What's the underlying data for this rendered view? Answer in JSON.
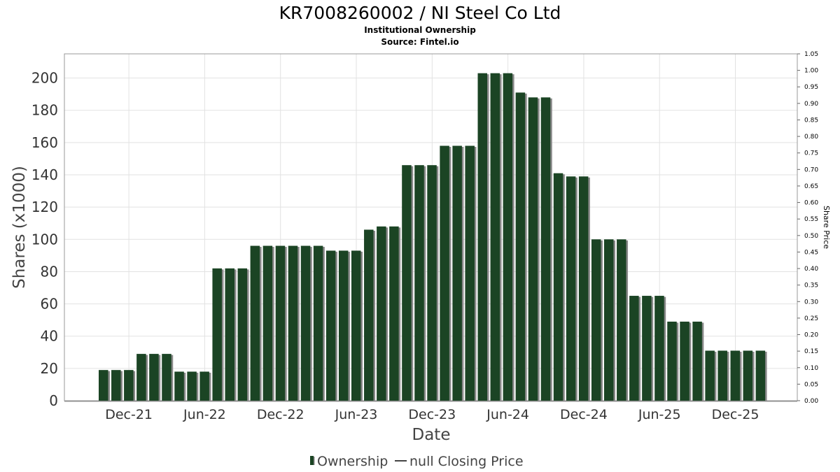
{
  "chart_data": {
    "type": "bar",
    "title": "KR7008260002 / NI Steel Co Ltd",
    "subtitle_lines": [
      "Institutional Ownership",
      "Source: Fintel.io"
    ],
    "xlabel": "Date",
    "ylabel": "Shares (x1000)",
    "y2label": "Share Price",
    "ylim": [
      0,
      215
    ],
    "y2lim": [
      0,
      1.05
    ],
    "y_ticks": [
      "0",
      "20",
      "40",
      "60",
      "80",
      "100",
      "120",
      "140",
      "160",
      "180",
      "200"
    ],
    "y2_ticks": [
      "0.00",
      "0.05",
      "0.10",
      "0.15",
      "0.20",
      "0.25",
      "0.30",
      "0.35",
      "0.40",
      "0.45",
      "0.50",
      "0.55",
      "0.60",
      "0.65",
      "0.70",
      "0.75",
      "0.80",
      "0.85",
      "0.90",
      "0.95",
      "1.00",
      "1.05"
    ],
    "x_ticks": [
      "Dec-21",
      "Jun-22",
      "Dec-22",
      "Jun-23",
      "Dec-23",
      "Jun-24",
      "Dec-24",
      "Jun-25",
      "Dec-25"
    ],
    "x_tick_positions": [
      2,
      8,
      14,
      20,
      26,
      32,
      38,
      44,
      50
    ],
    "x_slots": 53,
    "series": [
      {
        "name": "Ownership",
        "color": "#1b4424",
        "shadow_color": "#888888",
        "values": [
          19,
          19,
          19,
          29,
          29,
          29,
          18,
          18,
          18,
          82,
          82,
          82,
          96,
          96,
          96,
          96,
          96,
          96,
          93,
          93,
          93,
          106,
          108,
          108,
          146,
          146,
          146,
          158,
          158,
          158,
          203,
          203,
          203,
          191,
          188,
          188,
          141,
          139,
          139,
          100,
          100,
          100,
          65,
          65,
          65,
          49,
          49,
          49,
          31,
          31,
          31,
          31,
          31
        ]
      },
      {
        "name": "null Closing Price",
        "color": "#444444",
        "values": []
      }
    ],
    "legend": {
      "position": "bottom-center",
      "items": [
        "Ownership",
        "null Closing Price"
      ]
    }
  }
}
